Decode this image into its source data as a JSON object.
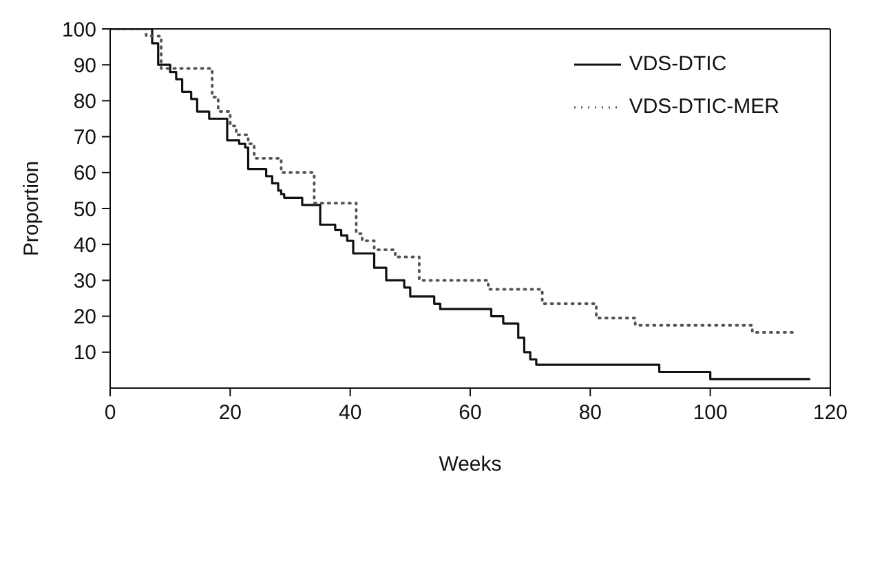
{
  "chart_data": {
    "type": "step",
    "xlabel": "Weeks",
    "ylabel": "Proportion",
    "xlim": [
      0,
      120
    ],
    "xticks": [
      0,
      20,
      40,
      60,
      80,
      100,
      120
    ],
    "ylim": [
      0,
      100
    ],
    "yticks": [
      10,
      20,
      30,
      40,
      50,
      60,
      70,
      80,
      90,
      100
    ],
    "legend": "top right",
    "marker": "none",
    "series": [
      {
        "name": "VDS-DTIC",
        "color": "#111111",
        "line_style": "solid",
        "x": [
          0,
          7,
          8,
          10,
          11,
          12,
          13.5,
          14.5,
          16.5,
          19.5,
          21.5,
          22.5,
          23,
          26,
          27,
          28,
          28.5,
          29,
          32,
          35,
          37.5,
          38.5,
          39.5,
          40.5,
          44,
          46,
          49,
          50,
          54,
          55,
          63.5,
          65.5,
          68,
          69,
          70,
          71,
          91.5,
          100,
          116.5
        ],
        "values": [
          100,
          96,
          90,
          88,
          86,
          82.5,
          80.5,
          77,
          75,
          69,
          68,
          67,
          61,
          59,
          57,
          55,
          54,
          53,
          51,
          45.5,
          44,
          42.5,
          41,
          37.5,
          33.5,
          30,
          28,
          25.5,
          23.5,
          22,
          20,
          18,
          14,
          10,
          8,
          6.5,
          4.5,
          2.5,
          2.5
        ]
      },
      {
        "name": "VDS-DTIC-MER",
        "color": "#555555",
        "line_style": "dotted",
        "x": [
          0,
          6,
          8.5,
          17,
          18,
          20,
          21,
          23,
          24,
          28.5,
          34,
          41,
          42,
          44,
          47.5,
          51.5,
          63,
          72,
          81,
          87.5,
          107,
          114.5
        ],
        "values": [
          100,
          98,
          89,
          81,
          77,
          73,
          70.5,
          68,
          64,
          60,
          51.5,
          43,
          41,
          38.5,
          36.5,
          30,
          27.5,
          23.5,
          19.5,
          17.5,
          15.5,
          15.5
        ]
      }
    ]
  }
}
